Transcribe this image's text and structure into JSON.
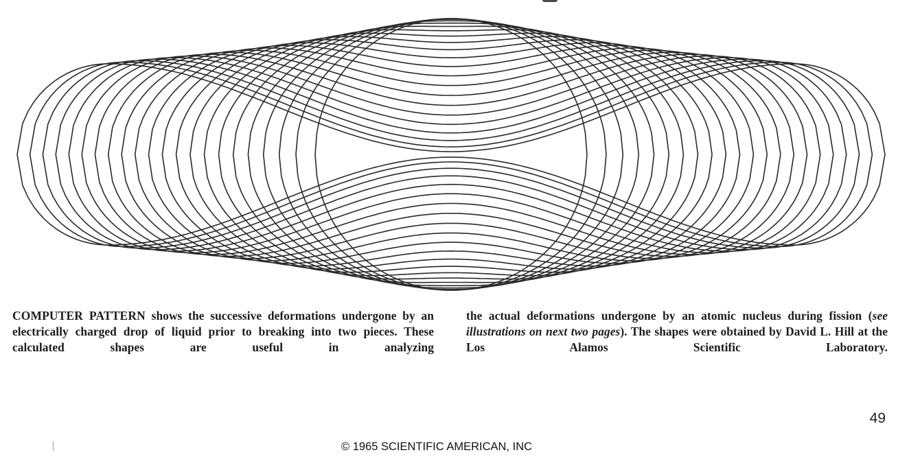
{
  "figure": {
    "name": "deformation pattern",
    "stroke_color": "#2a2a2a",
    "num_curves": 22
  },
  "caption": {
    "lead": "COMPUTER PATTERN",
    "col1_a": " shows the successive deformations undergone by an electrically charged drop of liquid prior to breaking into two pieces. These calculated shapes are useful in analyzing",
    "col2_a": "the actual deformations undergone by an atomic nucleus during fission (",
    "col2_italic": "see illustrations on next two pages",
    "col2_b": "). The shapes were obtained by David L. Hill at the Los Alamos Scientific Laboratory."
  },
  "page_number": "49",
  "copyright": "© 1965 SCIENTIFIC AMERICAN, INC"
}
